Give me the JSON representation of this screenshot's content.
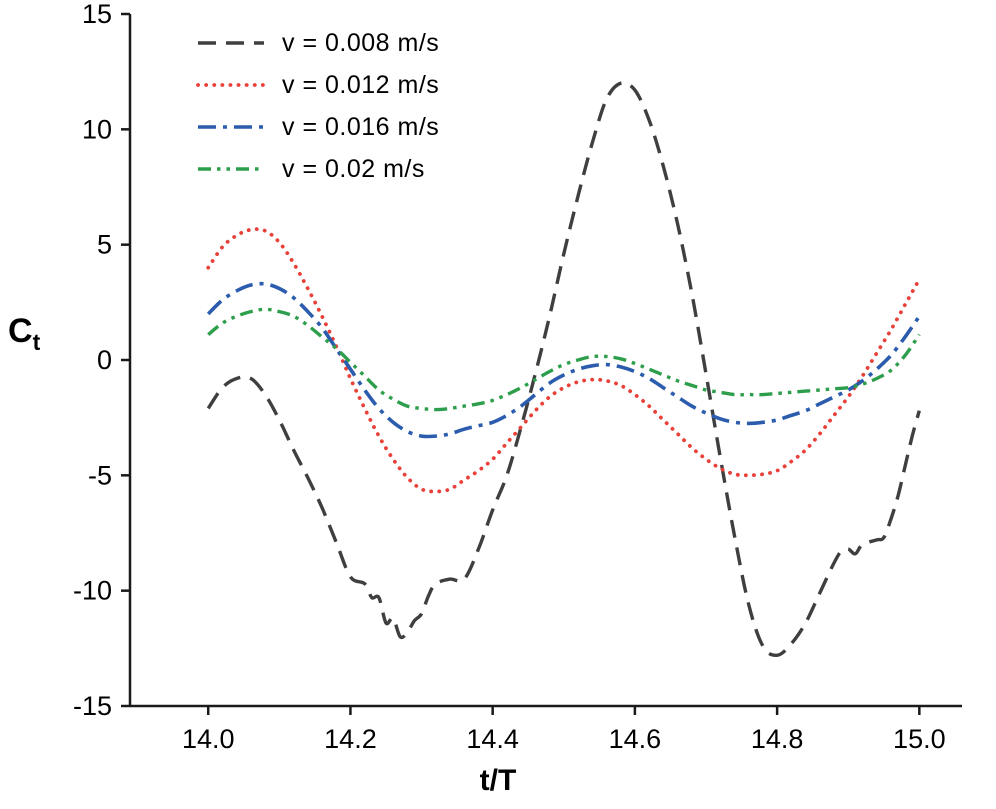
{
  "figure": {
    "xlabel": "t/T",
    "ylabel_main": "C",
    "ylabel_sub": "t",
    "background": "#ffffff"
  },
  "chart_data": {
    "type": "line",
    "title": "",
    "xlabel": "t/T",
    "ylabel": "Ct",
    "grid": false,
    "legend_position": "top-left",
    "axis_color": "#1a1a1a",
    "tick_label_color": "#000000",
    "tick_font_size": 27,
    "xlim": [
      13.89,
      15.06
    ],
    "ylim": [
      -15,
      15
    ],
    "xticks": [
      14.0,
      14.2,
      14.4,
      14.6,
      14.8,
      15.0
    ],
    "xtick_labels": [
      "14.0",
      "14.2",
      "14.4",
      "14.6",
      "14.8",
      "15.0"
    ],
    "yticks": [
      -15,
      -10,
      -5,
      0,
      5,
      10,
      15
    ],
    "ytick_labels": [
      "-15",
      "-10",
      "-5",
      "0",
      "5",
      "10",
      "15"
    ],
    "series": [
      {
        "name": "v = 0.008 m/s",
        "color": "#3f3f3f",
        "dash": "18 10",
        "width": 3.4,
        "linecap": "butt",
        "points": [
          [
            14.0,
            -2.1
          ],
          [
            14.02,
            -1.2
          ],
          [
            14.04,
            -0.8
          ],
          [
            14.06,
            -0.8
          ],
          [
            14.08,
            -1.5
          ],
          [
            14.1,
            -2.6
          ],
          [
            14.12,
            -3.9
          ],
          [
            14.14,
            -5.1
          ],
          [
            14.16,
            -6.4
          ],
          [
            14.18,
            -7.9
          ],
          [
            14.2,
            -9.4
          ],
          [
            14.22,
            -9.7
          ],
          [
            14.23,
            -10.3
          ],
          [
            14.24,
            -10.3
          ],
          [
            14.25,
            -11.4
          ],
          [
            14.26,
            -11.2
          ],
          [
            14.27,
            -12.0
          ],
          [
            14.28,
            -11.8
          ],
          [
            14.29,
            -11.3
          ],
          [
            14.3,
            -11.0
          ],
          [
            14.31,
            -10.2
          ],
          [
            14.32,
            -9.7
          ],
          [
            14.34,
            -9.5
          ],
          [
            14.36,
            -9.5
          ],
          [
            14.38,
            -8.2
          ],
          [
            14.4,
            -6.5
          ],
          [
            14.42,
            -5.0
          ],
          [
            14.44,
            -2.9
          ],
          [
            14.46,
            -0.6
          ],
          [
            14.48,
            1.9
          ],
          [
            14.5,
            4.6
          ],
          [
            14.52,
            7.1
          ],
          [
            14.54,
            9.4
          ],
          [
            14.56,
            11.3
          ],
          [
            14.58,
            12.0
          ],
          [
            14.6,
            11.7
          ],
          [
            14.62,
            10.4
          ],
          [
            14.64,
            8.4
          ],
          [
            14.66,
            5.9
          ],
          [
            14.68,
            2.9
          ],
          [
            14.7,
            -0.6
          ],
          [
            14.72,
            -4.2
          ],
          [
            14.74,
            -7.6
          ],
          [
            14.76,
            -10.6
          ],
          [
            14.78,
            -12.4
          ],
          [
            14.8,
            -12.8
          ],
          [
            14.82,
            -12.3
          ],
          [
            14.84,
            -11.4
          ],
          [
            14.86,
            -10.1
          ],
          [
            14.88,
            -8.8
          ],
          [
            14.89,
            -8.3
          ],
          [
            14.9,
            -8.2
          ],
          [
            14.91,
            -8.4
          ],
          [
            14.92,
            -8.0
          ],
          [
            14.94,
            -7.8
          ],
          [
            14.95,
            -7.7
          ],
          [
            14.96,
            -6.9
          ],
          [
            14.97,
            -5.9
          ],
          [
            14.98,
            -4.6
          ],
          [
            14.99,
            -3.3
          ],
          [
            15.0,
            -2.2
          ]
        ]
      },
      {
        "name": "v = 0.012 m/s",
        "color": "#e8413a",
        "dash": "0.1 8",
        "width": 3.8,
        "linecap": "round",
        "points": [
          [
            14.0,
            4.0
          ],
          [
            14.02,
            4.9
          ],
          [
            14.04,
            5.4
          ],
          [
            14.06,
            5.65
          ],
          [
            14.08,
            5.6
          ],
          [
            14.1,
            5.1
          ],
          [
            14.12,
            4.2
          ],
          [
            14.14,
            3.1
          ],
          [
            14.16,
            1.9
          ],
          [
            14.18,
            0.6
          ],
          [
            14.2,
            -0.8
          ],
          [
            14.22,
            -2.1
          ],
          [
            14.24,
            -3.3
          ],
          [
            14.26,
            -4.3
          ],
          [
            14.28,
            -5.1
          ],
          [
            14.3,
            -5.6
          ],
          [
            14.32,
            -5.7
          ],
          [
            14.34,
            -5.6
          ],
          [
            14.36,
            -5.2
          ],
          [
            14.38,
            -4.8
          ],
          [
            14.4,
            -4.3
          ],
          [
            14.42,
            -3.6
          ],
          [
            14.44,
            -2.9
          ],
          [
            14.46,
            -2.2
          ],
          [
            14.48,
            -1.6
          ],
          [
            14.5,
            -1.2
          ],
          [
            14.52,
            -0.95
          ],
          [
            14.54,
            -0.85
          ],
          [
            14.56,
            -0.9
          ],
          [
            14.58,
            -1.1
          ],
          [
            14.6,
            -1.5
          ],
          [
            14.62,
            -2.0
          ],
          [
            14.64,
            -2.6
          ],
          [
            14.66,
            -3.2
          ],
          [
            14.68,
            -3.8
          ],
          [
            14.7,
            -4.3
          ],
          [
            14.72,
            -4.7
          ],
          [
            14.74,
            -4.95
          ],
          [
            14.76,
            -5.0
          ],
          [
            14.78,
            -4.95
          ],
          [
            14.8,
            -4.8
          ],
          [
            14.82,
            -4.4
          ],
          [
            14.84,
            -3.9
          ],
          [
            14.86,
            -3.2
          ],
          [
            14.88,
            -2.4
          ],
          [
            14.9,
            -1.6
          ],
          [
            14.92,
            -0.7
          ],
          [
            14.94,
            0.3
          ],
          [
            14.96,
            1.3
          ],
          [
            14.98,
            2.4
          ],
          [
            15.0,
            3.5
          ]
        ]
      },
      {
        "name": "v = 0.016 m/s",
        "color": "#2b5cad",
        "dash": "18 7 4 7",
        "width": 3.6,
        "linecap": "butt",
        "points": [
          [
            14.0,
            2.0
          ],
          [
            14.02,
            2.6
          ],
          [
            14.04,
            3.0
          ],
          [
            14.06,
            3.25
          ],
          [
            14.08,
            3.3
          ],
          [
            14.1,
            3.1
          ],
          [
            14.12,
            2.7
          ],
          [
            14.14,
            2.1
          ],
          [
            14.16,
            1.4
          ],
          [
            14.18,
            0.5
          ],
          [
            14.2,
            -0.4
          ],
          [
            14.22,
            -1.3
          ],
          [
            14.24,
            -2.1
          ],
          [
            14.26,
            -2.7
          ],
          [
            14.28,
            -3.1
          ],
          [
            14.3,
            -3.3
          ],
          [
            14.32,
            -3.3
          ],
          [
            14.34,
            -3.2
          ],
          [
            14.36,
            -3.0
          ],
          [
            14.38,
            -2.85
          ],
          [
            14.4,
            -2.7
          ],
          [
            14.42,
            -2.4
          ],
          [
            14.44,
            -2.0
          ],
          [
            14.46,
            -1.5
          ],
          [
            14.48,
            -1.0
          ],
          [
            14.5,
            -0.65
          ],
          [
            14.52,
            -0.4
          ],
          [
            14.54,
            -0.25
          ],
          [
            14.56,
            -0.2
          ],
          [
            14.58,
            -0.3
          ],
          [
            14.6,
            -0.5
          ],
          [
            14.62,
            -0.8
          ],
          [
            14.64,
            -1.2
          ],
          [
            14.66,
            -1.6
          ],
          [
            14.68,
            -2.0
          ],
          [
            14.7,
            -2.3
          ],
          [
            14.72,
            -2.55
          ],
          [
            14.74,
            -2.7
          ],
          [
            14.76,
            -2.75
          ],
          [
            14.78,
            -2.7
          ],
          [
            14.8,
            -2.6
          ],
          [
            14.82,
            -2.4
          ],
          [
            14.84,
            -2.2
          ],
          [
            14.86,
            -1.9
          ],
          [
            14.88,
            -1.6
          ],
          [
            14.9,
            -1.3
          ],
          [
            14.92,
            -0.9
          ],
          [
            14.94,
            -0.4
          ],
          [
            14.96,
            0.2
          ],
          [
            14.98,
            1.0
          ],
          [
            15.0,
            1.9
          ]
        ]
      },
      {
        "name": "v = 0.02 m/s",
        "color": "#2d9e4b",
        "dash": "13 6 3.5 6 3.5 6",
        "width": 3.4,
        "linecap": "butt",
        "points": [
          [
            14.0,
            1.1
          ],
          [
            14.02,
            1.6
          ],
          [
            14.04,
            1.9
          ],
          [
            14.06,
            2.1
          ],
          [
            14.08,
            2.2
          ],
          [
            14.1,
            2.1
          ],
          [
            14.12,
            1.9
          ],
          [
            14.14,
            1.5
          ],
          [
            14.16,
            1.0
          ],
          [
            14.18,
            0.5
          ],
          [
            14.2,
            -0.1
          ],
          [
            14.22,
            -0.7
          ],
          [
            14.24,
            -1.3
          ],
          [
            14.26,
            -1.7
          ],
          [
            14.28,
            -2.0
          ],
          [
            14.3,
            -2.1
          ],
          [
            14.32,
            -2.15
          ],
          [
            14.34,
            -2.1
          ],
          [
            14.36,
            -2.0
          ],
          [
            14.38,
            -1.9
          ],
          [
            14.4,
            -1.75
          ],
          [
            14.42,
            -1.5
          ],
          [
            14.44,
            -1.2
          ],
          [
            14.46,
            -0.85
          ],
          [
            14.48,
            -0.5
          ],
          [
            14.5,
            -0.2
          ],
          [
            14.52,
            0.0
          ],
          [
            14.54,
            0.15
          ],
          [
            14.56,
            0.15
          ],
          [
            14.58,
            0.05
          ],
          [
            14.6,
            -0.15
          ],
          [
            14.62,
            -0.4
          ],
          [
            14.64,
            -0.65
          ],
          [
            14.66,
            -0.9
          ],
          [
            14.68,
            -1.1
          ],
          [
            14.7,
            -1.3
          ],
          [
            14.72,
            -1.4
          ],
          [
            14.74,
            -1.5
          ],
          [
            14.76,
            -1.5
          ],
          [
            14.78,
            -1.5
          ],
          [
            14.8,
            -1.45
          ],
          [
            14.82,
            -1.4
          ],
          [
            14.84,
            -1.35
          ],
          [
            14.86,
            -1.3
          ],
          [
            14.88,
            -1.25
          ],
          [
            14.9,
            -1.2
          ],
          [
            14.92,
            -1.05
          ],
          [
            14.94,
            -0.8
          ],
          [
            14.96,
            -0.45
          ],
          [
            14.98,
            0.2
          ],
          [
            15.0,
            1.1
          ]
        ]
      }
    ]
  }
}
